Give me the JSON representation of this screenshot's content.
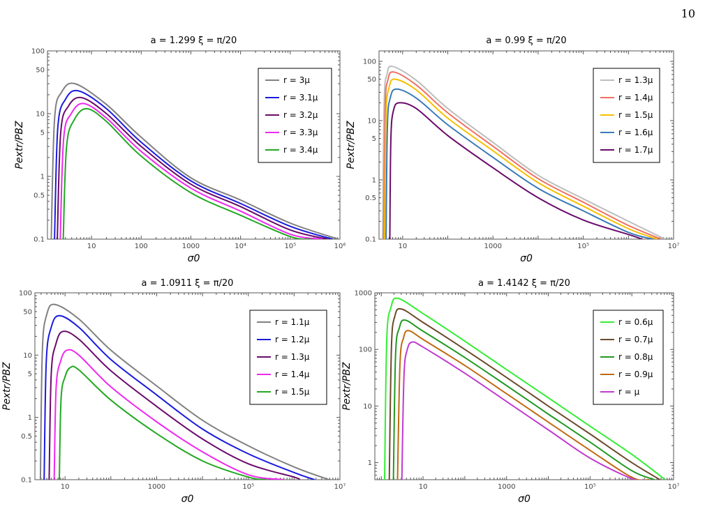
{
  "page_number": "10",
  "chart_data": [
    {
      "type": "line",
      "title": "a = 1.299      ξ = π/20",
      "xlabel": "σ0",
      "ylabel": "Pextr/PBZ",
      "xscale": "log",
      "yscale": "log",
      "xlim": [
        1.3,
        1000000
      ],
      "ylim": [
        0.1,
        100
      ],
      "xticks": [
        10,
        100,
        1000,
        10000,
        100000,
        1000000
      ],
      "xticklabels": [
        "10",
        "100",
        "1000",
        "10⁴",
        "10⁵",
        "10⁶"
      ],
      "yticks": [
        0.1,
        0.5,
        1,
        5,
        10,
        50,
        100
      ],
      "yticklabels": [
        "0.1",
        "0.5",
        "1",
        "5",
        "10",
        "50",
        "100"
      ],
      "legend_position": "upper-right",
      "series": [
        {
          "name": "r = 3μ",
          "color": "#808080",
          "x": [
            1.55,
            1.8,
            2.5,
            4.7,
            20,
            100,
            1000,
            10000,
            100000,
            920000
          ],
          "y": [
            0.1,
            8,
            22,
            30,
            14,
            4.2,
            0.95,
            0.42,
            0.18,
            0.1
          ]
        },
        {
          "name": "r = 3.1μ",
          "color": "#1a1adf",
          "x": [
            1.8,
            2.1,
            3,
            5.5,
            20,
            100,
            1000,
            10000,
            100000,
            700000
          ],
          "y": [
            0.1,
            6,
            17,
            23,
            12,
            3.5,
            0.85,
            0.37,
            0.16,
            0.1
          ]
        },
        {
          "name": "r = 3.2μ",
          "color": "#6a0a6a",
          "x": [
            2.05,
            2.4,
            3.4,
            6.3,
            20,
            100,
            1000,
            10000,
            100000,
            560000
          ],
          "y": [
            0.1,
            5,
            13,
            18,
            10,
            3.0,
            0.75,
            0.33,
            0.14,
            0.1
          ]
        },
        {
          "name": "r = 3.3μ",
          "color": "#ef28ef",
          "x": [
            2.35,
            2.75,
            3.9,
            7,
            20,
            100,
            1000,
            10000,
            100000,
            450000
          ],
          "y": [
            0.1,
            4,
            10,
            14.5,
            8.5,
            2.5,
            0.65,
            0.28,
            0.12,
            0.1
          ]
        },
        {
          "name": "r = 3.4μ",
          "color": "#22a822",
          "x": [
            2.7,
            3.15,
            4.5,
            8,
            20,
            100,
            1000,
            10000,
            100000,
            260000
          ],
          "y": [
            0.1,
            3,
            8,
            12,
            7.5,
            2.1,
            0.55,
            0.24,
            0.11,
            0.1
          ]
        }
      ]
    },
    {
      "type": "line",
      "title": "a = 0.99      ξ = π/20",
      "xlabel": "σ0",
      "ylabel": "Pextr/PBZ",
      "xscale": "log",
      "yscale": "log",
      "xlim": [
        3,
        10000000
      ],
      "ylim": [
        0.1,
        150
      ],
      "xticks": [
        10,
        1000,
        100000,
        10000000
      ],
      "xticklabels": [
        "10",
        "1000",
        "10⁵",
        "10⁷"
      ],
      "yticks": [
        0.1,
        0.5,
        1,
        5,
        10,
        50,
        100
      ],
      "yticklabels": [
        "0.1",
        "0.5",
        "1",
        "5",
        "10",
        "50",
        "100"
      ],
      "legend_position": "upper-right",
      "series": [
        {
          "name": "r = 1.3μ",
          "color": "#bdbdbd",
          "x": [
            3.6,
            3.9,
            4.5,
            6,
            20,
            100,
            1000,
            10000,
            100000,
            1000000,
            6500000
          ],
          "y": [
            0.1,
            20,
            60,
            82,
            48,
            16,
            4.3,
            1.2,
            0.48,
            0.2,
            0.1
          ]
        },
        {
          "name": "r = 1.4μ",
          "color": "#f06f60",
          "x": [
            3.8,
            4.1,
            4.7,
            6.4,
            20,
            100,
            1000,
            10000,
            100000,
            1000000,
            5300000
          ],
          "y": [
            0.1,
            16,
            48,
            66,
            40,
            13.5,
            3.7,
            1.05,
            0.42,
            0.17,
            0.1
          ]
        },
        {
          "name": "r = 1.5μ",
          "color": "#f5c000",
          "x": [
            4.0,
            4.3,
            5.0,
            6.8,
            20,
            100,
            1000,
            10000,
            100000,
            1000000,
            4400000
          ],
          "y": [
            0.1,
            12,
            36,
            50,
            33,
            11,
            3.1,
            0.9,
            0.36,
            0.15,
            0.1
          ]
        },
        {
          "name": "r = 1.6μ",
          "color": "#3a7ab8",
          "x": [
            4.3,
            4.6,
            5.3,
            7.3,
            20,
            100,
            1000,
            10000,
            100000,
            1000000,
            3500000
          ],
          "y": [
            0.1,
            8,
            24,
            34,
            24,
            8.5,
            2.4,
            0.72,
            0.3,
            0.13,
            0.1
          ]
        },
        {
          "name": "r = 1.7μ",
          "color": "#6a0a6a",
          "x": [
            5.2,
            5.5,
            6.3,
            8.5,
            20,
            100,
            1000,
            10000,
            100000,
            1000000,
            2000000
          ],
          "y": [
            0.1,
            5,
            15,
            20,
            16,
            5.6,
            1.6,
            0.5,
            0.21,
            0.12,
            0.1
          ]
        }
      ]
    },
    {
      "type": "line",
      "title": "a = 1.0911      ξ = π/20",
      "xlabel": "σ0",
      "ylabel": "Pextr/PBZ",
      "xscale": "log",
      "yscale": "log",
      "xlim": [
        2.2,
        10000000
      ],
      "ylim": [
        0.1,
        100
      ],
      "xticks": [
        10,
        1000,
        100000,
        10000000
      ],
      "xticklabels": [
        "10",
        "1000",
        "10⁵",
        "10⁷"
      ],
      "yticks": [
        0.1,
        0.5,
        1,
        5,
        10,
        50,
        100
      ],
      "yticklabels": [
        "0.1",
        "0.5",
        "1",
        "5",
        "10",
        "50",
        "100"
      ],
      "legend_position": "upper-right",
      "series": [
        {
          "name": "r = 1.1μ",
          "color": "#808080",
          "x": [
            2.9,
            3.2,
            4.0,
            6,
            20,
            100,
            1000,
            10000,
            100000,
            1000000,
            5800000
          ],
          "y": [
            0.1,
            12,
            45,
            65,
            38,
            12,
            3.2,
            0.9,
            0.35,
            0.16,
            0.1
          ]
        },
        {
          "name": "r = 1.2μ",
          "color": "#1a1adf",
          "x": [
            3.5,
            3.9,
            5.0,
            7.5,
            20,
            100,
            1000,
            10000,
            100000,
            1000000,
            2800000
          ],
          "y": [
            0.1,
            8,
            28,
            43,
            28,
            8.5,
            2.3,
            0.65,
            0.26,
            0.13,
            0.1
          ]
        },
        {
          "name": "r = 1.3μ",
          "color": "#6a0a6a",
          "x": [
            4.5,
            5.0,
            6.3,
            9,
            20,
            100,
            1000,
            10000,
            100000,
            1000000,
            1300000
          ],
          "y": [
            0.1,
            5,
            15,
            24,
            18,
            5.6,
            1.5,
            0.45,
            0.18,
            0.11,
            0.1
          ]
        },
        {
          "name": "r = 1.4μ",
          "color": "#ef28ef",
          "x": [
            5.8,
            6.4,
            8.0,
            11,
            20,
            100,
            1000,
            10000,
            100000,
            600000
          ],
          "y": [
            0.1,
            3,
            8,
            12,
            10,
            3.1,
            0.85,
            0.28,
            0.12,
            0.1
          ]
        },
        {
          "name": "r = 1.5μ",
          "color": "#22a822",
          "x": [
            7.5,
            8.2,
            10,
            13,
            20,
            100,
            1000,
            10000,
            100000,
            250000
          ],
          "y": [
            0.1,
            2,
            4.5,
            6.3,
            5.8,
            1.9,
            0.55,
            0.2,
            0.11,
            0.1
          ]
        }
      ]
    },
    {
      "type": "line",
      "title": "a = 1.4142      ξ = π/20",
      "xlabel": "σ0",
      "ylabel": "Pextr/PBZ",
      "xscale": "log",
      "yscale": "log",
      "xlim": [
        0.7,
        10000000
      ],
      "ylim": [
        0.5,
        1000
      ],
      "xticks": [
        10,
        1000,
        100000,
        10000000
      ],
      "xticklabels": [
        "10",
        "1000",
        "10⁵",
        "10⁷"
      ],
      "yticks": [
        1,
        10,
        100,
        1000
      ],
      "yticklabels": [
        "1",
        "10",
        "100",
        "1000"
      ],
      "legend_position": "upper-right",
      "series": [
        {
          "name": "r = 0.6μ",
          "color": "#33ee33",
          "x": [
            1.2,
            1.35,
            1.7,
            2.5,
            10,
            100,
            1000,
            10000,
            100000,
            1000000,
            6300000
          ],
          "y": [
            0.5,
            150,
            550,
            800,
            430,
            140,
            44,
            14,
            4.4,
            1.4,
            0.5
          ]
        },
        {
          "name": "r = 0.7μ",
          "color": "#6b4a2a",
          "x": [
            1.55,
            1.75,
            2.1,
            3.0,
            10,
            100,
            1000,
            10000,
            100000,
            1000000,
            4700000
          ],
          "y": [
            0.5,
            110,
            380,
            520,
            300,
            100,
            32,
            10,
            3.2,
            1.0,
            0.5
          ]
        },
        {
          "name": "r = 0.8μ",
          "color": "#229922",
          "x": [
            1.95,
            2.2,
            2.7,
            3.7,
            10,
            100,
            1000,
            10000,
            100000,
            1000000,
            3500000
          ],
          "y": [
            0.5,
            80,
            240,
            330,
            210,
            72,
            23,
            7.2,
            2.3,
            0.72,
            0.5
          ]
        },
        {
          "name": "r = 0.9μ",
          "color": "#c06a10",
          "x": [
            2.45,
            2.8,
            3.4,
            4.5,
            10,
            100,
            1000,
            10000,
            100000,
            1000000,
            2600000
          ],
          "y": [
            0.5,
            55,
            160,
            215,
            150,
            52,
            16.5,
            5.2,
            1.65,
            0.55,
            0.5
          ]
        },
        {
          "name": "r = μ",
          "color": "#c03acf",
          "x": [
            3.1,
            3.5,
            4.2,
            5.5,
            10,
            100,
            1000,
            10000,
            100000,
            1000000,
            1900000
          ],
          "y": [
            0.5,
            35,
            100,
            135,
            110,
            38,
            12,
            3.8,
            1.2,
            0.52,
            0.5
          ]
        }
      ]
    }
  ]
}
